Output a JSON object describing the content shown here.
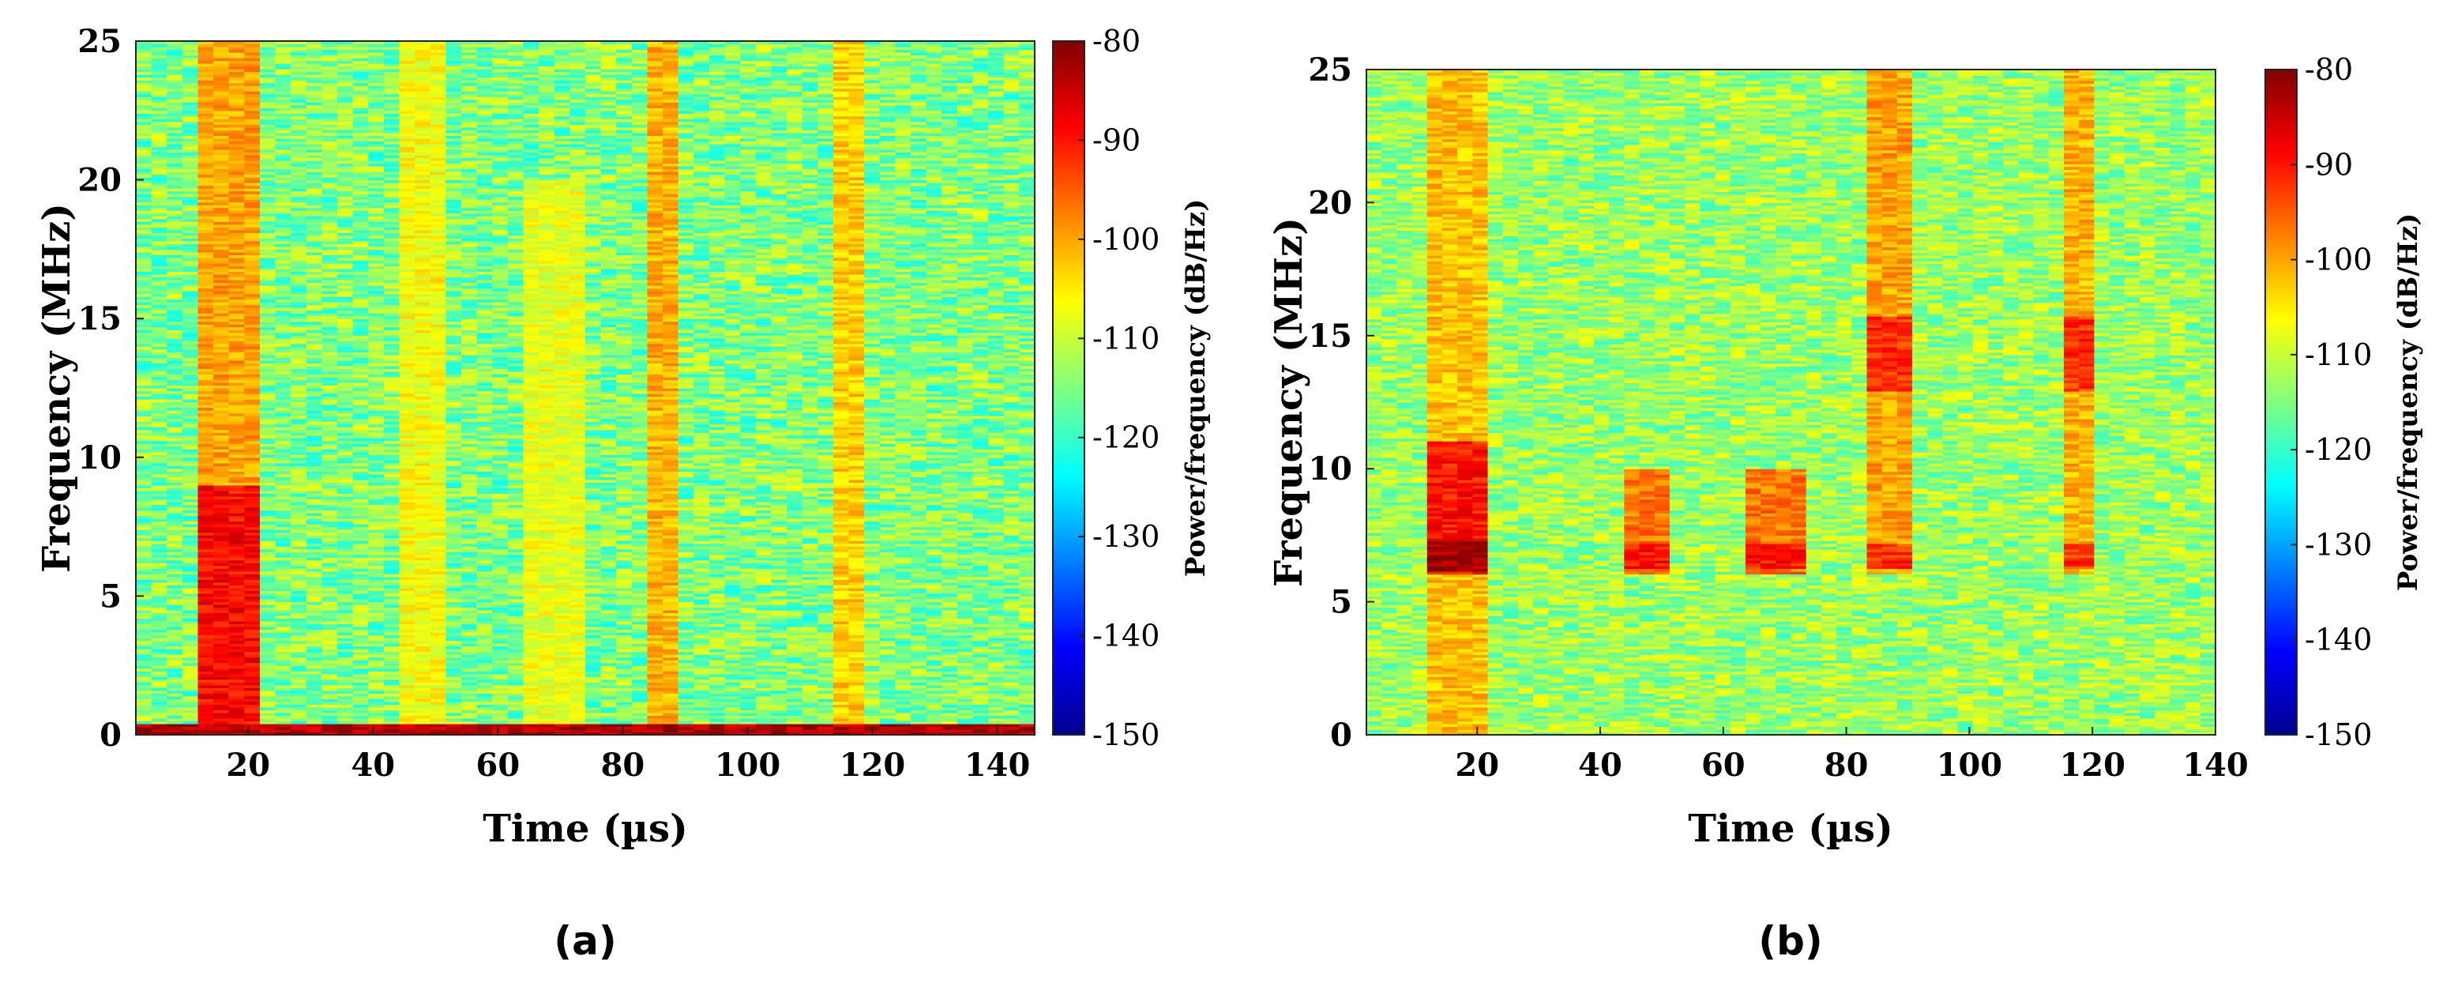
{
  "chart_data": [
    {
      "type": "heatmap",
      "panel_label": "(a)",
      "title": "",
      "xlabel": "Time (µs)",
      "ylabel": "Frequency (MHz)",
      "colorbar_label": "Power/frequency (dB/Hz)",
      "xlim": [
        2,
        146
      ],
      "ylim": [
        0,
        25
      ],
      "clim": [
        -150,
        -80
      ],
      "xticks": [
        20,
        40,
        60,
        80,
        100,
        120,
        140
      ],
      "yticks": [
        0,
        5,
        10,
        15,
        20,
        25
      ],
      "cticks": [
        -80,
        -90,
        -100,
        -110,
        -120,
        -130,
        -140,
        -150
      ],
      "time_bins": 58,
      "freq_bins": 250,
      "baseline_db": -115,
      "noise_db": 8,
      "features": [
        {
          "t_start": 12.5,
          "t_end": 22.5,
          "f_start": 0,
          "f_end": 25,
          "db": -100,
          "note": "broadband pulse, stronger 0-9 MHz (~-88 dB)"
        },
        {
          "t_start": 44.5,
          "t_end": 52.5,
          "f_start": 0,
          "f_end": 25,
          "db": -107
        },
        {
          "t_start": 64.5,
          "t_end": 74.5,
          "f_start": 0,
          "f_end": 20,
          "db": -108
        },
        {
          "t_start": 84.5,
          "t_end": 89.5,
          "f_start": 0,
          "f_end": 25,
          "db": -101
        },
        {
          "t_start": 114.5,
          "t_end": 119.5,
          "f_start": 0,
          "f_end": 25,
          "db": -103
        },
        {
          "t_start": 2,
          "t_end": 146,
          "f_start": 0,
          "f_end": 0.4,
          "db": -85,
          "note": "low-frequency baseline band"
        }
      ]
    },
    {
      "type": "heatmap",
      "panel_label": "(b)",
      "title": "",
      "xlabel": "Time (µs)",
      "ylabel": "Frequency (MHz)",
      "colorbar_label": "Power/frequency (dB/Hz)",
      "xlim": [
        2,
        140
      ],
      "ylim": [
        0,
        25
      ],
      "clim": [
        -150,
        -80
      ],
      "xticks": [
        20,
        40,
        60,
        80,
        100,
        120,
        140
      ],
      "yticks": [
        0,
        5,
        10,
        15,
        20,
        25
      ],
      "cticks": [
        -80,
        -90,
        -100,
        -110,
        -120,
        -130,
        -140,
        -150
      ],
      "time_bins": 56,
      "freq_bins": 240,
      "baseline_db": -113,
      "noise_db": 7,
      "features": [
        {
          "t_start": 12.5,
          "t_end": 22.5,
          "f_start": 0,
          "f_end": 25,
          "db": -102,
          "note": "strong 6-11 MHz (~-88 dB), peak near 6.7 MHz"
        },
        {
          "t_start": 44.5,
          "t_end": 52.5,
          "f_start": 6,
          "f_end": 10,
          "db": -97
        },
        {
          "t_start": 64.5,
          "t_end": 74.5,
          "f_start": 6,
          "f_end": 10,
          "db": -97
        },
        {
          "t_start": 84.5,
          "t_end": 89.5,
          "f_start": 6,
          "f_end": 25,
          "db": -100,
          "note": "peaks near 6.7 and 14 MHz"
        },
        {
          "t_start": 114.5,
          "t_end": 119.5,
          "f_start": 6,
          "f_end": 25,
          "db": -101,
          "note": "peaks near 6.7 and 14.5 MHz"
        }
      ]
    }
  ]
}
